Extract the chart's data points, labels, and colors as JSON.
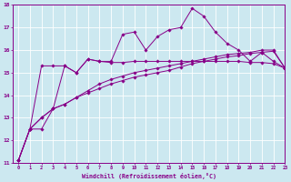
{
  "xlabel": "Windchill (Refroidissement éolien,°C)",
  "background_color": "#cce8f0",
  "line_color": "#880088",
  "grid_color": "#aadddd",
  "x_values": [
    0,
    1,
    2,
    3,
    4,
    5,
    6,
    7,
    8,
    9,
    10,
    11,
    12,
    13,
    14,
    15,
    16,
    17,
    18,
    19,
    20,
    21,
    22,
    23
  ],
  "series1": [
    11.1,
    12.5,
    12.5,
    13.4,
    15.3,
    15.0,
    15.6,
    15.5,
    15.5,
    16.7,
    16.8,
    16.0,
    16.6,
    16.9,
    17.0,
    17.85,
    17.5,
    16.8,
    16.3,
    16.0,
    15.5,
    15.9,
    15.5,
    15.2
  ],
  "series2": [
    11.1,
    12.5,
    15.3,
    15.3,
    15.3,
    15.0,
    15.6,
    15.5,
    15.45,
    15.45,
    15.5,
    15.5,
    15.5,
    15.5,
    15.5,
    15.5,
    15.5,
    15.5,
    15.5,
    15.5,
    15.45,
    15.45,
    15.4,
    15.2
  ],
  "series3": [
    11.1,
    12.5,
    13.0,
    13.4,
    13.6,
    13.9,
    14.2,
    14.5,
    14.7,
    14.85,
    15.0,
    15.1,
    15.2,
    15.3,
    15.4,
    15.5,
    15.6,
    15.7,
    15.8,
    15.85,
    15.9,
    16.0,
    16.0,
    15.2
  ],
  "series4": [
    11.1,
    12.5,
    13.0,
    13.4,
    13.6,
    13.9,
    14.1,
    14.3,
    14.5,
    14.65,
    14.8,
    14.9,
    15.0,
    15.1,
    15.25,
    15.4,
    15.5,
    15.6,
    15.7,
    15.75,
    15.85,
    15.9,
    15.95,
    15.2
  ],
  "ylim": [
    11,
    18
  ],
  "xlim": [
    -0.5,
    23
  ],
  "yticks": [
    11,
    12,
    13,
    14,
    15,
    16,
    17,
    18
  ],
  "xticks": [
    0,
    1,
    2,
    3,
    4,
    5,
    6,
    7,
    8,
    9,
    10,
    11,
    12,
    13,
    14,
    15,
    16,
    17,
    18,
    19,
    20,
    21,
    22,
    23
  ]
}
